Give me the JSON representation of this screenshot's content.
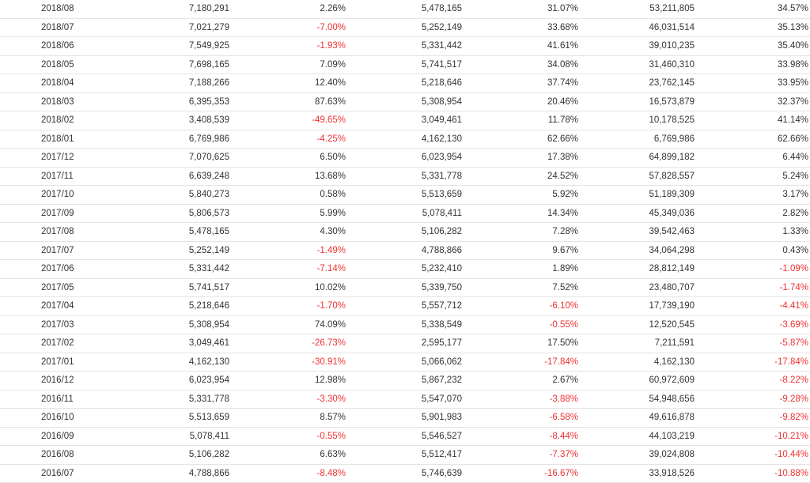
{
  "colors": {
    "negative": "#ee3333",
    "text": "#333333",
    "row_border": "#e4e4e4"
  },
  "rows": [
    {
      "month": "2018/08",
      "c1": "7,180,291",
      "c2": "2.26%",
      "c3": "5,478,165",
      "c4": "31.07%",
      "c5": "53,211,805",
      "c6": "34.57%"
    },
    {
      "month": "2018/07",
      "c1": "7,021,279",
      "c2": "-7.00%",
      "c3": "5,252,149",
      "c4": "33.68%",
      "c5": "46,031,514",
      "c6": "35.13%"
    },
    {
      "month": "2018/06",
      "c1": "7,549,925",
      "c2": "-1.93%",
      "c3": "5,331,442",
      "c4": "41.61%",
      "c5": "39,010,235",
      "c6": "35.40%"
    },
    {
      "month": "2018/05",
      "c1": "7,698,165",
      "c2": "7.09%",
      "c3": "5,741,517",
      "c4": "34.08%",
      "c5": "31,460,310",
      "c6": "33.98%"
    },
    {
      "month": "2018/04",
      "c1": "7,188,266",
      "c2": "12.40%",
      "c3": "5,218,646",
      "c4": "37.74%",
      "c5": "23,762,145",
      "c6": "33.95%"
    },
    {
      "month": "2018/03",
      "c1": "6,395,353",
      "c2": "87.63%",
      "c3": "5,308,954",
      "c4": "20.46%",
      "c5": "16,573,879",
      "c6": "32.37%"
    },
    {
      "month": "2018/02",
      "c1": "3,408,539",
      "c2": "-49.65%",
      "c3": "3,049,461",
      "c4": "11.78%",
      "c5": "10,178,525",
      "c6": "41.14%"
    },
    {
      "month": "2018/01",
      "c1": "6,769,986",
      "c2": "-4.25%",
      "c3": "4,162,130",
      "c4": "62.66%",
      "c5": "6,769,986",
      "c6": "62.66%"
    },
    {
      "month": "2017/12",
      "c1": "7,070,625",
      "c2": "6.50%",
      "c3": "6,023,954",
      "c4": "17.38%",
      "c5": "64,899,182",
      "c6": "6.44%"
    },
    {
      "month": "2017/11",
      "c1": "6,639,248",
      "c2": "13.68%",
      "c3": "5,331,778",
      "c4": "24.52%",
      "c5": "57,828,557",
      "c6": "5.24%"
    },
    {
      "month": "2017/10",
      "c1": "5,840,273",
      "c2": "0.58%",
      "c3": "5,513,659",
      "c4": "5.92%",
      "c5": "51,189,309",
      "c6": "3.17%"
    },
    {
      "month": "2017/09",
      "c1": "5,806,573",
      "c2": "5.99%",
      "c3": "5,078,411",
      "c4": "14.34%",
      "c5": "45,349,036",
      "c6": "2.82%"
    },
    {
      "month": "2017/08",
      "c1": "5,478,165",
      "c2": "4.30%",
      "c3": "5,106,282",
      "c4": "7.28%",
      "c5": "39,542,463",
      "c6": "1.33%"
    },
    {
      "month": "2017/07",
      "c1": "5,252,149",
      "c2": "-1.49%",
      "c3": "4,788,866",
      "c4": "9.67%",
      "c5": "34,064,298",
      "c6": "0.43%"
    },
    {
      "month": "2017/06",
      "c1": "5,331,442",
      "c2": "-7.14%",
      "c3": "5,232,410",
      "c4": "1.89%",
      "c5": "28,812,149",
      "c6": "-1.09%"
    },
    {
      "month": "2017/05",
      "c1": "5,741,517",
      "c2": "10.02%",
      "c3": "5,339,750",
      "c4": "7.52%",
      "c5": "23,480,707",
      "c6": "-1.74%"
    },
    {
      "month": "2017/04",
      "c1": "5,218,646",
      "c2": "-1.70%",
      "c3": "5,557,712",
      "c4": "-6.10%",
      "c5": "17,739,190",
      "c6": "-4.41%"
    },
    {
      "month": "2017/03",
      "c1": "5,308,954",
      "c2": "74.09%",
      "c3": "5,338,549",
      "c4": "-0.55%",
      "c5": "12,520,545",
      "c6": "-3.69%"
    },
    {
      "month": "2017/02",
      "c1": "3,049,461",
      "c2": "-26.73%",
      "c3": "2,595,177",
      "c4": "17.50%",
      "c5": "7,211,591",
      "c6": "-5.87%"
    },
    {
      "month": "2017/01",
      "c1": "4,162,130",
      "c2": "-30.91%",
      "c3": "5,066,062",
      "c4": "-17.84%",
      "c5": "4,162,130",
      "c6": "-17.84%"
    },
    {
      "month": "2016/12",
      "c1": "6,023,954",
      "c2": "12.98%",
      "c3": "5,867,232",
      "c4": "2.67%",
      "c5": "60,972,609",
      "c6": "-8.22%"
    },
    {
      "month": "2016/11",
      "c1": "5,331,778",
      "c2": "-3.30%",
      "c3": "5,547,070",
      "c4": "-3.88%",
      "c5": "54,948,656",
      "c6": "-9.28%"
    },
    {
      "month": "2016/10",
      "c1": "5,513,659",
      "c2": "8.57%",
      "c3": "5,901,983",
      "c4": "-6.58%",
      "c5": "49,616,878",
      "c6": "-9.82%"
    },
    {
      "month": "2016/09",
      "c1": "5,078,411",
      "c2": "-0.55%",
      "c3": "5,546,527",
      "c4": "-8.44%",
      "c5": "44,103,219",
      "c6": "-10.21%"
    },
    {
      "month": "2016/08",
      "c1": "5,106,282",
      "c2": "6.63%",
      "c3": "5,512,417",
      "c4": "-7.37%",
      "c5": "39,024,808",
      "c6": "-10.44%"
    },
    {
      "month": "2016/07",
      "c1": "4,788,866",
      "c2": "-8.48%",
      "c3": "5,746,639",
      "c4": "-16.67%",
      "c5": "33,918,526",
      "c6": "-10.88%"
    }
  ]
}
